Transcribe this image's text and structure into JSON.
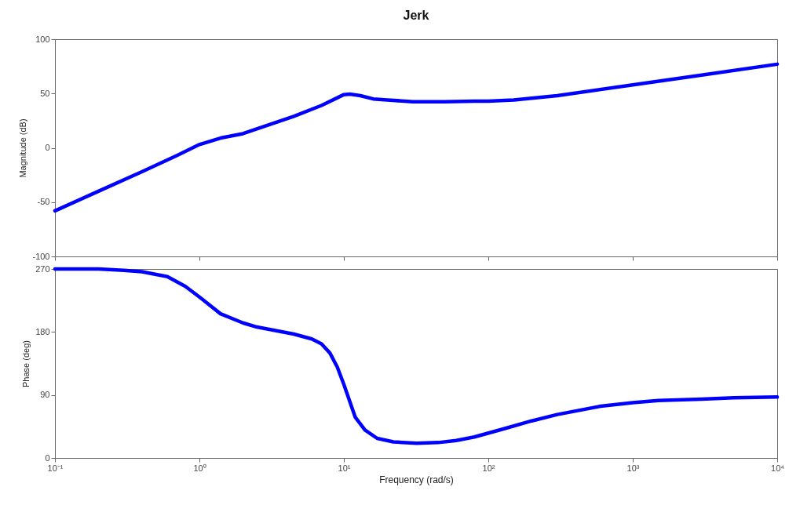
{
  "chart_data": [
    {
      "type": "line",
      "title": "Jerk",
      "ylabel": "Magnitude (dB)",
      "log": "x",
      "xlim": [
        0.1,
        10000
      ],
      "xticks": [
        {
          "value": 0.1,
          "label": null
        },
        {
          "value": 1,
          "label": null
        },
        {
          "value": 10,
          "label": null
        },
        {
          "value": 100,
          "label": null
        },
        {
          "value": 1000,
          "label": null
        },
        {
          "value": 10000,
          "label": null
        }
      ],
      "ylim": [
        -100,
        100
      ],
      "yticks": [
        -100,
        -50,
        0,
        50,
        100
      ],
      "tick_labels": "y",
      "grid": false,
      "series": [
        {
          "color": "#0000ff",
          "x": [
            0.1,
            0.2,
            0.4,
            0.7,
            1,
            1.4,
            2,
            3,
            4.5,
            7,
            10,
            11,
            13,
            16,
            20,
            30,
            50,
            80,
            100,
            150,
            300,
            1000,
            3000,
            10000
          ],
          "values": [
            -58,
            -40,
            -22,
            -7,
            3,
            9,
            13,
            21,
            29,
            39,
            49,
            49.5,
            48,
            45,
            44,
            42.5,
            42.5,
            43,
            43,
            44,
            48,
            58,
            67,
            77
          ]
        }
      ]
    },
    {
      "type": "line",
      "xlabel": "Frequency  (rad/s)",
      "ylabel": "Phase (deg)",
      "log": "x",
      "xlim": [
        0.1,
        10000
      ],
      "xticks": [
        {
          "value": 0.1,
          "label": "10⁻¹"
        },
        {
          "value": 1,
          "label": "10⁰"
        },
        {
          "value": 10,
          "label": "10¹"
        },
        {
          "value": 100,
          "label": "10²"
        },
        {
          "value": 1000,
          "label": "10³"
        },
        {
          "value": 10000,
          "label": "10⁴"
        }
      ],
      "ylim": [
        0,
        270
      ],
      "yticks": [
        0,
        90,
        180,
        270
      ],
      "grid": false,
      "series": [
        {
          "color": "#0000ff",
          "x": [
            0.1,
            0.2,
            0.3,
            0.4,
            0.6,
            0.8,
            1,
            1.4,
            2,
            2.5,
            4.5,
            6,
            7,
            8,
            9,
            10,
            12,
            14,
            17,
            22,
            32,
            45,
            60,
            80,
            130,
            200,
            300,
            600,
            1000,
            1500,
            3000,
            5000,
            10000
          ],
          "values": [
            270,
            270,
            268,
            266,
            259,
            245,
            230,
            206,
            193,
            187,
            177,
            170,
            163,
            150,
            130,
            105,
            58,
            40,
            28,
            23,
            21,
            22,
            25,
            30,
            42,
            53,
            62,
            74,
            79,
            82,
            84,
            86,
            87
          ]
        }
      ]
    }
  ]
}
